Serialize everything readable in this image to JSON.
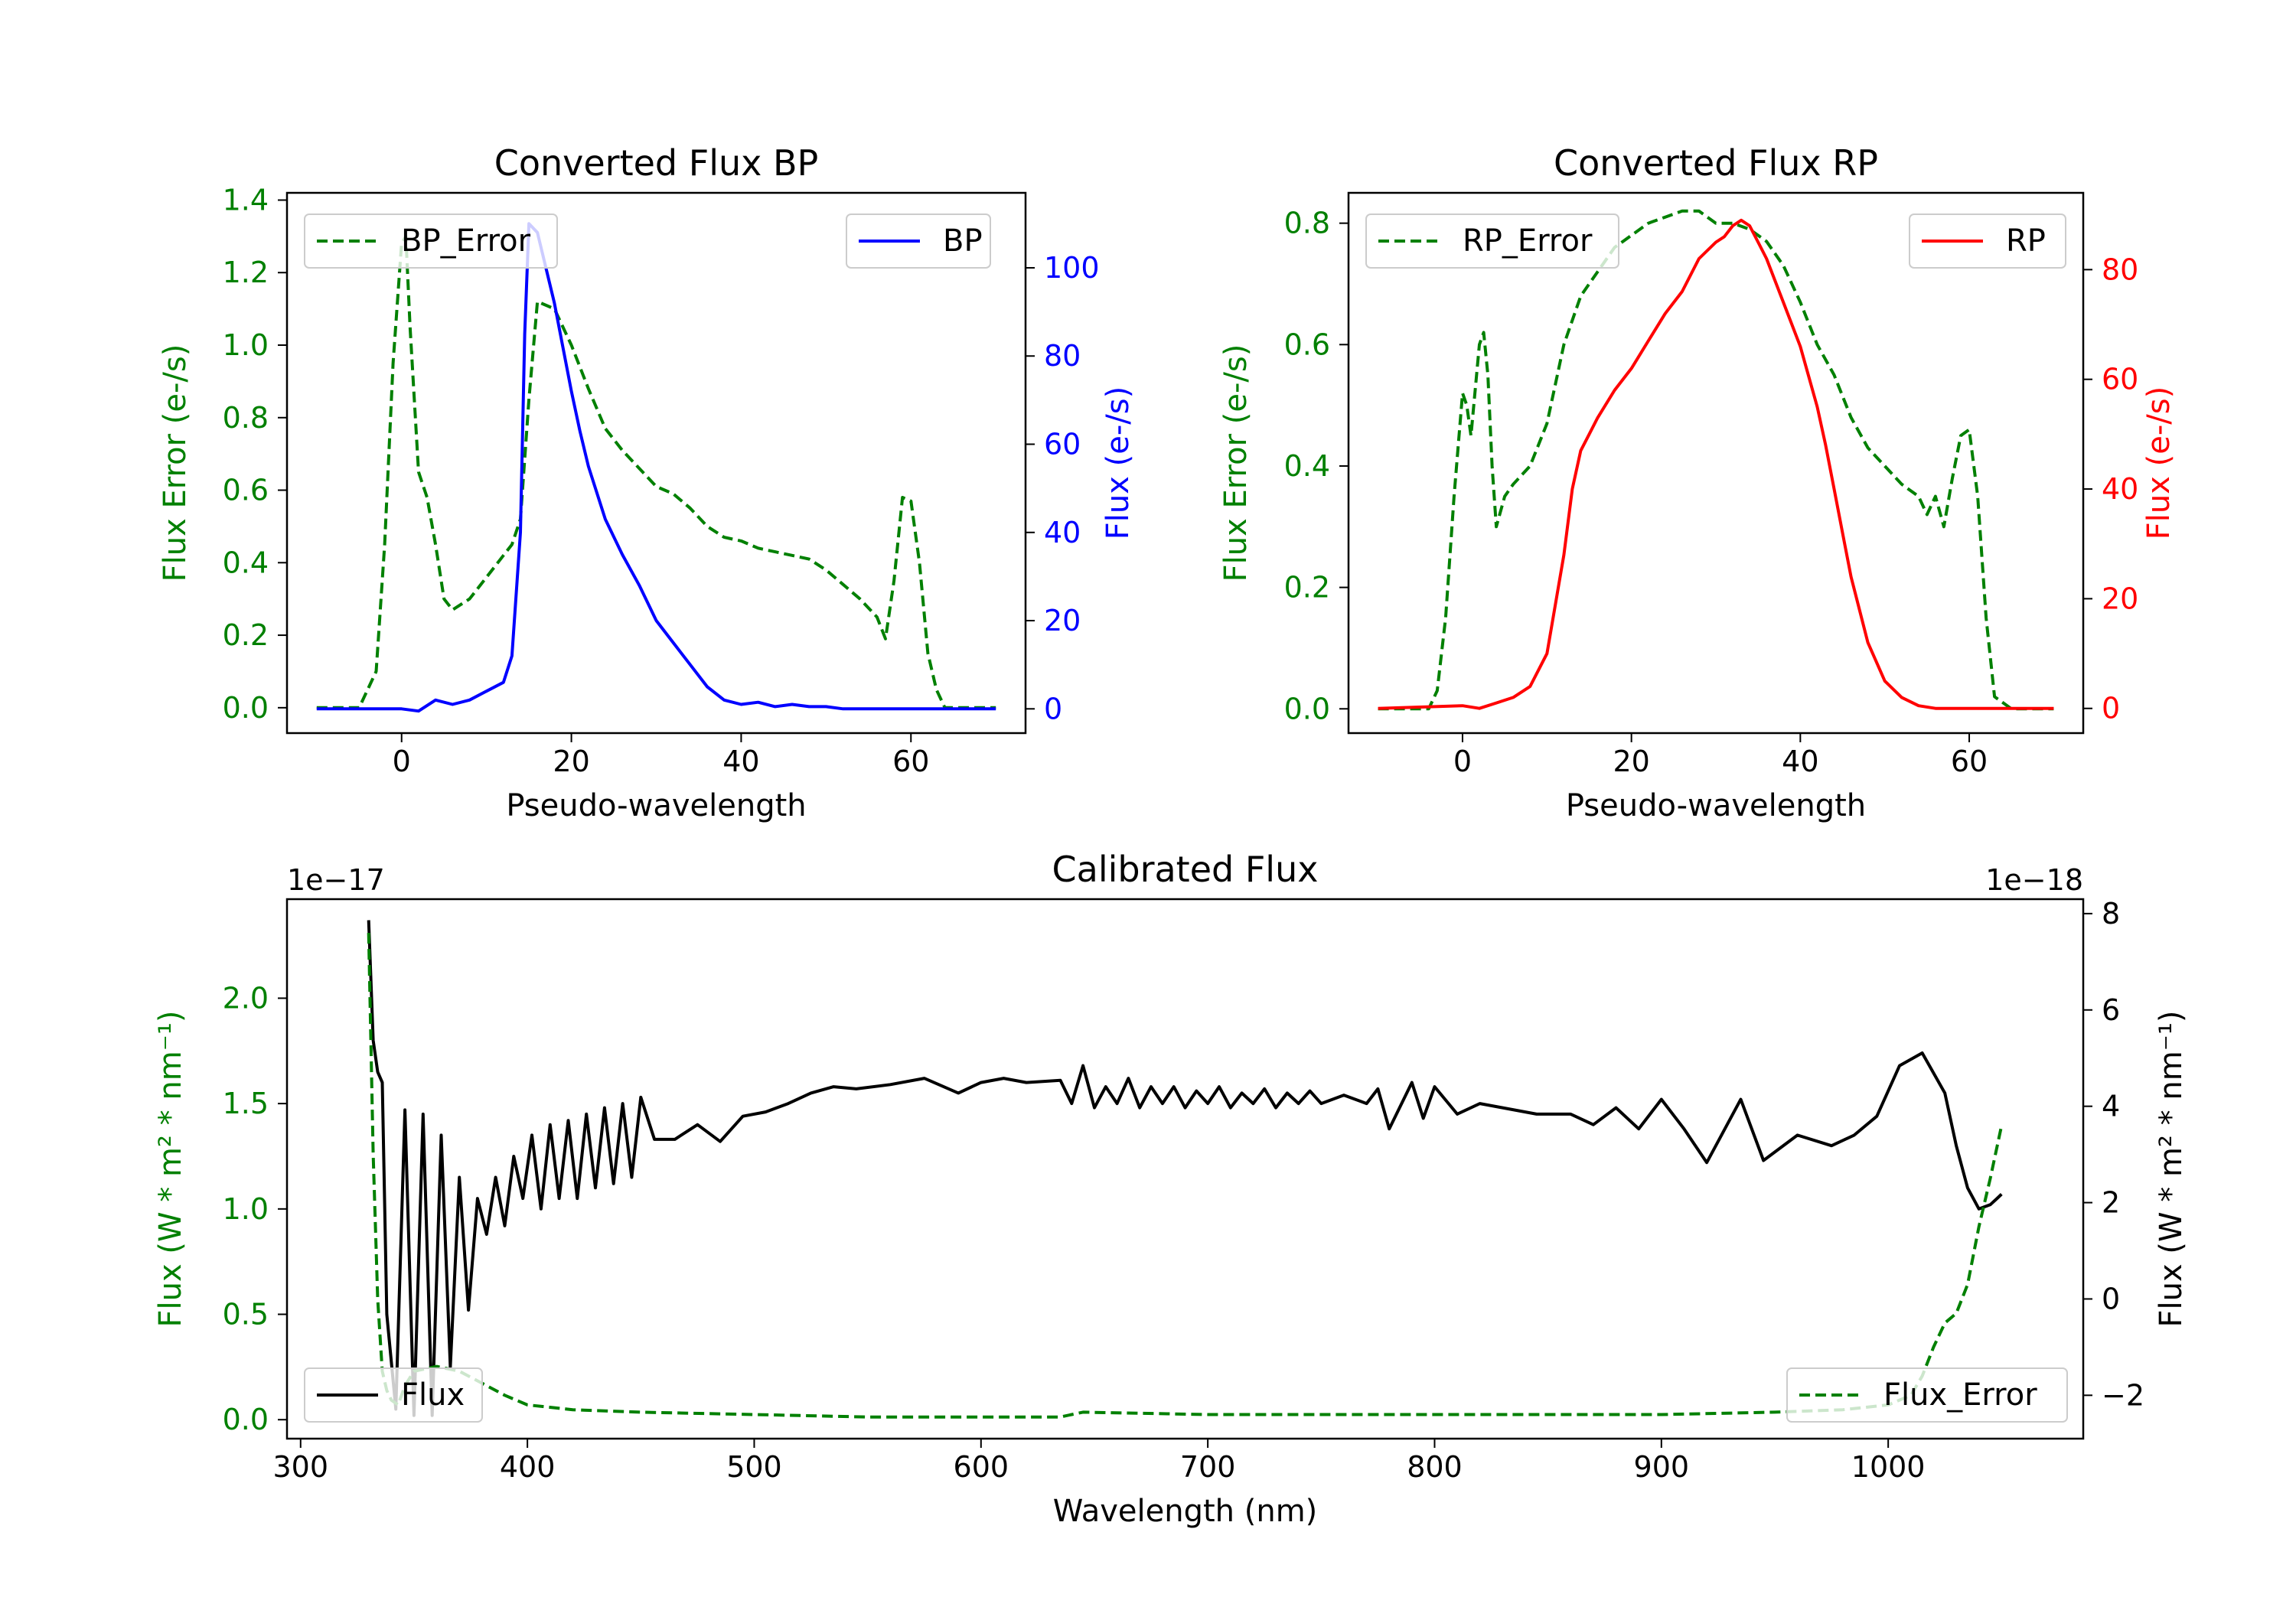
{
  "chart_data": [
    {
      "type": "line",
      "title": "Converted Flux BP",
      "xlabel": "Pseudo-wavelength",
      "ylabel_left": "Flux Error (e-/s)",
      "ylabel_right": "Flux (e-/s)",
      "xlim": [
        -13.5,
        73.5
      ],
      "ylim_left": [
        -0.07,
        1.42
      ],
      "ylim_right": [
        -5.5,
        117
      ],
      "xticks": [
        "0",
        "20",
        "40",
        "60"
      ],
      "yticks_left": [
        "0.0",
        "0.2",
        "0.4",
        "0.6",
        "0.8",
        "1.0",
        "1.2",
        "1.4"
      ],
      "yticks_right": [
        "0",
        "20",
        "40",
        "60",
        "80",
        "100"
      ],
      "legend_left": "top-left",
      "legend_right": "top-right",
      "colors": {
        "error": "#008000",
        "flux": "#0000ff",
        "axis_left": "#008000",
        "axis_right": "#0000ff"
      },
      "series": [
        {
          "name": "BP_Error",
          "axis": "left",
          "style": "dashed",
          "x": [
            -10,
            -5,
            -3,
            -2,
            -1,
            0,
            0.5,
            1,
            2,
            3,
            4,
            5,
            6,
            8,
            10,
            12,
            13,
            14,
            15,
            16,
            18,
            20,
            22,
            24,
            26,
            28,
            30,
            32,
            34,
            36,
            38,
            40,
            42,
            44,
            46,
            48,
            50,
            52,
            54,
            56,
            57,
            58,
            59,
            60,
            61,
            62,
            63,
            64,
            66,
            70
          ],
          "y": [
            0.0,
            0.0,
            0.1,
            0.45,
            0.95,
            1.28,
            1.3,
            1.05,
            0.65,
            0.58,
            0.45,
            0.3,
            0.27,
            0.3,
            0.36,
            0.42,
            0.45,
            0.52,
            0.85,
            1.12,
            1.1,
            1.0,
            0.88,
            0.77,
            0.71,
            0.66,
            0.61,
            0.59,
            0.55,
            0.5,
            0.47,
            0.46,
            0.44,
            0.43,
            0.42,
            0.41,
            0.38,
            0.34,
            0.3,
            0.25,
            0.19,
            0.35,
            0.58,
            0.57,
            0.4,
            0.15,
            0.05,
            0.0,
            0.0,
            0.0
          ]
        },
        {
          "name": "BP",
          "axis": "right",
          "style": "solid",
          "x": [
            -10,
            0,
            2,
            4,
            6,
            8,
            10,
            12,
            13,
            14,
            14.5,
            15,
            16,
            17,
            18,
            19,
            20,
            21,
            22,
            24,
            26,
            28,
            30,
            32,
            34,
            36,
            38,
            40,
            42,
            44,
            46,
            48,
            50,
            52,
            56,
            60,
            65,
            70
          ],
          "y": [
            0,
            0,
            -0.5,
            2,
            1,
            2,
            4,
            6,
            12,
            40,
            85,
            110,
            108,
            100,
            92,
            82,
            72,
            63,
            55,
            43,
            35,
            28,
            20,
            15,
            10,
            5,
            2,
            1,
            1.5,
            0.5,
            1,
            0.5,
            0.5,
            0,
            0,
            0,
            0,
            0
          ]
        }
      ]
    },
    {
      "type": "line",
      "title": "Converted Flux RP",
      "xlabel": "Pseudo-wavelength",
      "ylabel_left": "Flux Error (e-/s)",
      "ylabel_right": "Flux (e-/s)",
      "xlim": [
        -13.5,
        73.5
      ],
      "ylim_left": [
        -0.04,
        0.85
      ],
      "ylim_right": [
        -4.5,
        94
      ],
      "xticks": [
        "0",
        "20",
        "40",
        "60"
      ],
      "yticks_left": [
        "0.0",
        "0.2",
        "0.4",
        "0.6",
        "0.8"
      ],
      "yticks_right": [
        "0",
        "20",
        "40",
        "60",
        "80"
      ],
      "legend_left": "top-left",
      "legend_right": "top-right",
      "colors": {
        "error": "#008000",
        "flux": "#ff0000",
        "axis_left": "#008000",
        "axis_right": "#ff0000"
      },
      "series": [
        {
          "name": "RP_Error",
          "axis": "left",
          "style": "dashed",
          "x": [
            -10,
            -4,
            -3,
            -2,
            -1,
            0,
            0.5,
            1,
            2,
            2.5,
            3,
            3.5,
            4,
            5,
            6,
            8,
            10,
            12,
            14,
            16,
            18,
            20,
            22,
            24,
            26,
            28,
            30,
            32,
            34,
            36,
            38,
            40,
            42,
            44,
            46,
            48,
            50,
            52,
            54,
            55,
            56,
            57,
            58,
            59,
            60,
            61,
            62,
            63,
            65,
            70
          ],
          "y": [
            0.0,
            0.0,
            0.03,
            0.15,
            0.35,
            0.52,
            0.5,
            0.45,
            0.6,
            0.62,
            0.55,
            0.4,
            0.3,
            0.35,
            0.37,
            0.4,
            0.47,
            0.6,
            0.68,
            0.72,
            0.76,
            0.78,
            0.8,
            0.81,
            0.82,
            0.82,
            0.8,
            0.8,
            0.79,
            0.77,
            0.73,
            0.67,
            0.6,
            0.55,
            0.48,
            0.43,
            0.4,
            0.37,
            0.35,
            0.32,
            0.35,
            0.3,
            0.38,
            0.45,
            0.46,
            0.35,
            0.15,
            0.02,
            0.0,
            0.0
          ]
        },
        {
          "name": "RP",
          "axis": "right",
          "style": "solid",
          "x": [
            -10,
            0,
            2,
            4,
            6,
            8,
            10,
            12,
            13,
            14,
            15,
            16,
            18,
            20,
            22,
            24,
            26,
            28,
            30,
            31,
            32,
            33,
            34,
            35,
            36,
            38,
            40,
            42,
            43,
            44,
            45,
            46,
            48,
            50,
            52,
            54,
            56,
            60,
            65,
            70
          ],
          "y": [
            0,
            0.5,
            0,
            1,
            2,
            4,
            10,
            28,
            40,
            47,
            50,
            53,
            58,
            62,
            67,
            72,
            76,
            82,
            85,
            86,
            88,
            89,
            88,
            85,
            82,
            74,
            66,
            55,
            48,
            40,
            32,
            24,
            12,
            5,
            2,
            0.5,
            0,
            0,
            0,
            0
          ]
        }
      ]
    },
    {
      "type": "line",
      "title": "Calibrated Flux",
      "xlabel": "Wavelength (nm)",
      "ylabel_left": "Flux (W * m² * nm⁻¹)",
      "ylabel_right": "Flux (W * m² * nm⁻¹)",
      "offset_left": "1e−17",
      "offset_right": "1e−18",
      "xlim": [
        294,
        1086
      ],
      "ylim_left": [
        -0.09,
        2.47
      ],
      "ylim_right": [
        -2.9,
        8.3
      ],
      "xticks": [
        "300",
        "400",
        "500",
        "600",
        "700",
        "800",
        "900",
        "1000"
      ],
      "yticks_left": [
        "0.0",
        "0.5",
        "1.0",
        "1.5",
        "2.0"
      ],
      "yticks_right": [
        "−2",
        "0",
        "2",
        "4",
        "6",
        "8"
      ],
      "legend_left": "bottom-left",
      "legend_right": "bottom-right",
      "colors": {
        "flux": "#000000",
        "error": "#008000",
        "axis_left": "#008000",
        "axis_right": "#000000"
      },
      "series": [
        {
          "name": "Flux",
          "axis": "left",
          "style": "solid",
          "x": [
            330,
            332,
            334,
            336,
            338,
            342,
            346,
            350,
            354,
            358,
            362,
            366,
            370,
            374,
            378,
            382,
            386,
            390,
            394,
            398,
            402,
            406,
            410,
            414,
            418,
            422,
            426,
            430,
            434,
            438,
            442,
            446,
            450,
            456,
            465,
            475,
            485,
            495,
            505,
            515,
            525,
            535,
            545,
            560,
            575,
            590,
            600,
            610,
            620,
            635,
            640,
            645,
            650,
            655,
            660,
            665,
            670,
            675,
            680,
            685,
            690,
            695,
            700,
            705,
            710,
            715,
            720,
            725,
            730,
            735,
            740,
            745,
            750,
            760,
            770,
            775,
            780,
            790,
            795,
            800,
            810,
            820,
            830,
            845,
            860,
            870,
            880,
            890,
            900,
            910,
            920,
            935,
            945,
            960,
            975,
            985,
            995,
            1005,
            1015,
            1025,
            1030,
            1035,
            1040,
            1045,
            1048,
            1050
          ],
          "y": [
            2.37,
            1.8,
            1.65,
            1.6,
            0.5,
            0.05,
            1.47,
            0.02,
            1.45,
            0.02,
            1.35,
            0.25,
            1.15,
            0.52,
            1.05,
            0.88,
            1.15,
            0.92,
            1.25,
            1.05,
            1.35,
            1.0,
            1.4,
            1.05,
            1.42,
            1.05,
            1.45,
            1.1,
            1.48,
            1.12,
            1.5,
            1.15,
            1.53,
            1.33,
            1.33,
            1.4,
            1.32,
            1.44,
            1.46,
            1.5,
            1.55,
            1.58,
            1.57,
            1.59,
            1.62,
            1.55,
            1.6,
            1.62,
            1.6,
            1.61,
            1.5,
            1.68,
            1.48,
            1.58,
            1.5,
            1.62,
            1.48,
            1.58,
            1.5,
            1.58,
            1.48,
            1.56,
            1.5,
            1.58,
            1.48,
            1.55,
            1.5,
            1.57,
            1.48,
            1.55,
            1.5,
            1.56,
            1.5,
            1.54,
            1.5,
            1.57,
            1.38,
            1.6,
            1.43,
            1.58,
            1.45,
            1.5,
            1.48,
            1.45,
            1.45,
            1.4,
            1.48,
            1.38,
            1.52,
            1.38,
            1.22,
            1.52,
            1.23,
            1.35,
            1.3,
            1.35,
            1.44,
            1.68,
            1.74,
            1.55,
            1.3,
            1.1,
            1.0,
            1.02,
            1.05,
            1.07
          ]
        },
        {
          "name": "Flux_Error",
          "axis": "right",
          "style": "dashed",
          "x": [
            330,
            332,
            334,
            336,
            338,
            340,
            343,
            346,
            350,
            360,
            370,
            380,
            390,
            400,
            420,
            450,
            500,
            550,
            600,
            635,
            640,
            645,
            700,
            800,
            900,
            950,
            980,
            1000,
            1010,
            1015,
            1020,
            1025,
            1030,
            1035,
            1040,
            1045,
            1050
          ],
          "y": [
            7.6,
            3.0,
            0.0,
            -1.5,
            -1.9,
            -2.1,
            -2.2,
            -1.8,
            -1.5,
            -1.4,
            -1.5,
            -1.75,
            -2.0,
            -2.2,
            -2.3,
            -2.35,
            -2.4,
            -2.45,
            -2.45,
            -2.45,
            -2.4,
            -2.35,
            -2.4,
            -2.4,
            -2.4,
            -2.35,
            -2.3,
            -2.2,
            -2.0,
            -1.6,
            -1.0,
            -0.5,
            -0.3,
            0.3,
            1.5,
            2.5,
            3.6
          ]
        }
      ]
    }
  ]
}
